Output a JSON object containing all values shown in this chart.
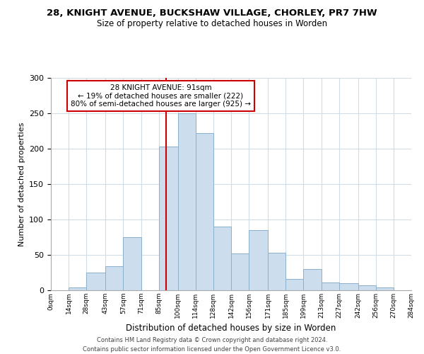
{
  "title": "28, KNIGHT AVENUE, BUCKSHAW VILLAGE, CHORLEY, PR7 7HW",
  "subtitle": "Size of property relative to detached houses in Worden",
  "xlabel": "Distribution of detached houses by size in Worden",
  "ylabel": "Number of detached properties",
  "bar_color": "#ccdded",
  "bar_edge_color": "#8ab0cc",
  "background_color": "#ffffff",
  "grid_color": "#d0dce8",
  "bin_edges": [
    0,
    14,
    28,
    43,
    57,
    71,
    85,
    100,
    114,
    128,
    142,
    156,
    171,
    185,
    199,
    213,
    227,
    242,
    256,
    270,
    284
  ],
  "bar_heights": [
    0,
    4,
    25,
    34,
    75,
    0,
    203,
    250,
    222,
    90,
    52,
    85,
    53,
    16,
    30,
    11,
    10,
    7,
    4,
    0
  ],
  "tick_labels": [
    "0sqm",
    "14sqm",
    "28sqm",
    "43sqm",
    "57sqm",
    "71sqm",
    "85sqm",
    "100sqm",
    "114sqm",
    "128sqm",
    "142sqm",
    "156sqm",
    "171sqm",
    "185sqm",
    "199sqm",
    "213sqm",
    "227sqm",
    "242sqm",
    "256sqm",
    "270sqm",
    "284sqm"
  ],
  "vline_x": 91,
  "vline_color": "#cc0000",
  "annotation_title": "28 KNIGHT AVENUE: 91sqm",
  "annotation_line1": "← 19% of detached houses are smaller (222)",
  "annotation_line2": "80% of semi-detached houses are larger (925) →",
  "annotation_box_color": "#ffffff",
  "annotation_box_edge": "#cc0000",
  "ylim": [
    0,
    300
  ],
  "yticks": [
    0,
    50,
    100,
    150,
    200,
    250,
    300
  ],
  "footer1": "Contains HM Land Registry data © Crown copyright and database right 2024.",
  "footer2": "Contains public sector information licensed under the Open Government Licence v3.0."
}
